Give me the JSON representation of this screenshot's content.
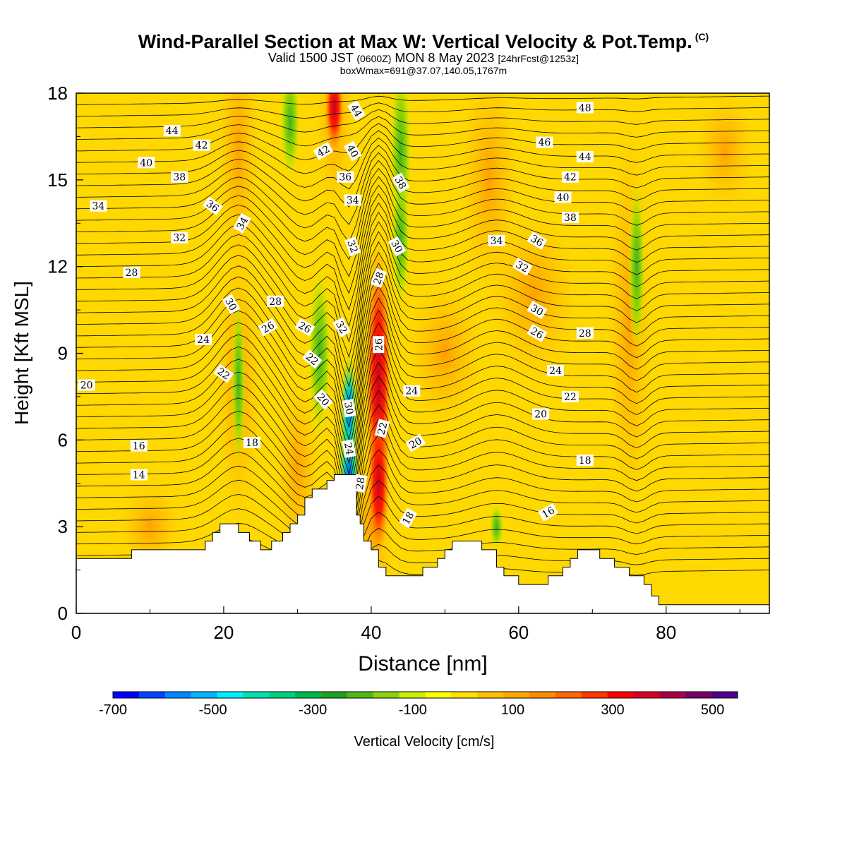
{
  "title": {
    "line1": "Wind-Parallel Section at Max W: Vertical Velocity & Pot.Temp.",
    "copyright": "(C)",
    "line2_a": "Valid 1500 JST",
    "line2_b": "(0600Z)",
    "line2_c": "MON 8 May 2023",
    "line2_d": "[24hrFcst@1253z]",
    "line3": "boxWmax=691@37.07,140.05,1767m"
  },
  "chart_data": {
    "type": "heatmap",
    "xlabel": "Distance [nm]",
    "ylabel": "Height [Kft MSL]",
    "xlim": [
      0,
      94
    ],
    "ylim": [
      0,
      18
    ],
    "x_ticks": [
      0,
      20,
      40,
      60,
      80
    ],
    "y_ticks": [
      0,
      3,
      6,
      9,
      12,
      15,
      18
    ],
    "colorbar": {
      "label": "Vertical Velocity [cm/s]",
      "range": [
        -700,
        550
      ],
      "tick_values": [
        -700,
        -500,
        -300,
        -100,
        100,
        300,
        500
      ],
      "tick_labels": [
        "-700",
        "-500",
        "-300",
        "-100",
        "100",
        "300",
        "500"
      ],
      "colors": [
        "#0000ff",
        "#0044ff",
        "#0088ff",
        "#00b4ff",
        "#00f0ff",
        "#00e0b0",
        "#00d080",
        "#00b850",
        "#22a020",
        "#50b818",
        "#90d010",
        "#ccf000",
        "#ffff00",
        "#ffe000",
        "#ffc000",
        "#ffa800",
        "#ff8c00",
        "#ff6800",
        "#ff3800",
        "#ff0000",
        "#d80028",
        "#a8004a",
        "#780068",
        "#50008c"
      ]
    },
    "terrain_kft": [
      [
        0,
        1.9
      ],
      [
        7.5,
        1.9
      ],
      [
        7.5,
        2.2
      ],
      [
        12.5,
        2.2
      ],
      [
        17.5,
        2.2
      ],
      [
        17.5,
        2.5
      ],
      [
        18.5,
        2.5
      ],
      [
        18.5,
        2.8
      ],
      [
        19.5,
        2.8
      ],
      [
        19.5,
        3.1
      ],
      [
        22,
        3.1
      ],
      [
        22,
        2.8
      ],
      [
        23.5,
        2.8
      ],
      [
        23.5,
        2.5
      ],
      [
        25,
        2.5
      ],
      [
        25,
        2.2
      ],
      [
        26.5,
        2.2
      ],
      [
        26.5,
        2.5
      ],
      [
        28,
        2.5
      ],
      [
        28,
        2.8
      ],
      [
        29,
        2.8
      ],
      [
        29,
        3.1
      ],
      [
        30,
        3.1
      ],
      [
        30,
        3.4
      ],
      [
        31,
        3.4
      ],
      [
        31,
        4.0
      ],
      [
        32,
        4.0
      ],
      [
        32,
        4.3
      ],
      [
        34,
        4.3
      ],
      [
        34,
        4.6
      ],
      [
        35,
        4.6
      ],
      [
        35,
        4.8
      ],
      [
        38,
        4.8
      ],
      [
        38,
        3.4
      ],
      [
        38.5,
        3.4
      ],
      [
        38.5,
        3.1
      ],
      [
        39,
        3.1
      ],
      [
        39,
        2.5
      ],
      [
        40,
        2.5
      ],
      [
        40,
        2.2
      ],
      [
        41,
        2.2
      ],
      [
        41,
        1.6
      ],
      [
        42,
        1.6
      ],
      [
        42,
        1.3
      ],
      [
        47,
        1.3
      ],
      [
        47,
        1.6
      ],
      [
        49,
        1.6
      ],
      [
        49,
        1.9
      ],
      [
        50,
        1.9
      ],
      [
        50,
        2.2
      ],
      [
        51,
        2.2
      ],
      [
        51,
        2.5
      ],
      [
        52,
        2.5
      ],
      [
        52,
        2.5
      ],
      [
        55,
        2.5
      ],
      [
        55,
        2.2
      ],
      [
        57,
        2.2
      ],
      [
        57,
        1.6
      ],
      [
        58,
        1.6
      ],
      [
        58,
        1.3
      ],
      [
        60,
        1.3
      ],
      [
        60,
        1.0
      ],
      [
        64,
        1.0
      ],
      [
        64,
        1.3
      ],
      [
        66,
        1.3
      ],
      [
        66,
        1.6
      ],
      [
        67,
        1.6
      ],
      [
        67,
        1.9
      ],
      [
        68,
        1.9
      ],
      [
        68,
        2.2
      ],
      [
        71,
        2.2
      ],
      [
        71,
        1.9
      ],
      [
        73,
        1.9
      ],
      [
        73,
        1.6
      ],
      [
        75,
        1.6
      ],
      [
        75,
        1.3
      ],
      [
        77,
        1.3
      ],
      [
        77,
        1.0
      ],
      [
        78,
        1.0
      ],
      [
        78,
        0.6
      ],
      [
        79,
        0.6
      ],
      [
        79,
        0.3
      ],
      [
        94,
        0.3
      ],
      [
        94,
        0
      ]
    ],
    "contour_labels": [
      {
        "text": "44",
        "x": 13,
        "y": 16.7,
        "rot": 0
      },
      {
        "text": "42",
        "x": 17,
        "y": 16.2,
        "rot": 0
      },
      {
        "text": "40",
        "x": 9.5,
        "y": 15.6,
        "rot": 0
      },
      {
        "text": "38",
        "x": 14,
        "y": 15.1,
        "rot": 0
      },
      {
        "text": "34",
        "x": 3,
        "y": 14.1,
        "rot": 0
      },
      {
        "text": "36",
        "x": 18.5,
        "y": 14.1,
        "rot": 35
      },
      {
        "text": "34",
        "x": 22.5,
        "y": 13.5,
        "rot": -60
      },
      {
        "text": "32",
        "x": 14,
        "y": 13.0,
        "rot": 0
      },
      {
        "text": "28",
        "x": 7.5,
        "y": 11.8,
        "rot": 0
      },
      {
        "text": "30",
        "x": 21,
        "y": 10.7,
        "rot": 60
      },
      {
        "text": "28",
        "x": 27,
        "y": 10.8,
        "rot": 0
      },
      {
        "text": "26",
        "x": 26,
        "y": 9.9,
        "rot": -30
      },
      {
        "text": "26",
        "x": 31,
        "y": 9.9,
        "rot": 30
      },
      {
        "text": "24",
        "x": 17055,
        "y": 9.4,
        "rot": 0
      },
      {
        "text": "22",
        "x": 20,
        "y": 8.3,
        "rot": 35
      },
      {
        "text": "20",
        "x": 1400,
        "y": 7.9,
        "rot": 0
      },
      {
        "text": "22",
        "x": 32000,
        "y": 8.8,
        "rot": 40
      },
      {
        "text": "20",
        "x": 33.5,
        "y": 7.4,
        "rot": 50
      },
      {
        "text": "18",
        "x": 24000,
        "y": 5.9,
        "rot": 0
      },
      {
        "text": "16",
        "x": 8.5,
        "y": 5.8,
        "rot": 0
      },
      {
        "text": "14",
        "x": 8.5,
        "y": 4.8,
        "rot": 0
      },
      {
        "text": "44",
        "x": 38000,
        "y": 17.4,
        "rot": 60
      },
      {
        "text": "42",
        "x": 33500,
        "y": 16.0,
        "rot": -30
      },
      {
        "text": "40",
        "x": 37.5,
        "y": 16.0,
        "rot": 60
      },
      {
        "text": "36",
        "x": 36.5,
        "y": 15.1,
        "rot": 0
      },
      {
        "text": "34",
        "x": 37.5,
        "y": 14.3,
        "rot": 0
      },
      {
        "text": "32",
        "x": 37.5,
        "y": 12.7,
        "rot": 70
      },
      {
        "text": "32",
        "x": 36,
        "y": 9.9,
        "rot": 60
      },
      {
        "text": "30",
        "x": 37,
        "y": 7.1,
        "rot": 80
      },
      {
        "text": "24",
        "x": 37,
        "y": 5.7,
        "rot": 80
      },
      {
        "text": "28",
        "x": 38.5,
        "y": 4.5,
        "rot": -80
      },
      {
        "text": "38",
        "x": 44000,
        "y": 14.9,
        "rot": 60
      },
      {
        "text": "30",
        "x": 43500,
        "y": 12.7,
        "rot": 60
      },
      {
        "text": "28",
        "x": 41,
        "y": 11.6,
        "rot": -70
      },
      {
        "text": "26",
        "x": 41,
        "y": 9.3,
        "rot": -90
      },
      {
        "text": "24",
        "x": 45.5,
        "y": 7.7,
        "rot": 0
      },
      {
        "text": "22",
        "x": 41.5,
        "y": 6.4,
        "rot": -75
      },
      {
        "text": "20",
        "x": 46,
        "y": 5.9,
        "rot": -30
      },
      {
        "text": "18",
        "x": 45,
        "y": 3.3,
        "rot": -60
      },
      {
        "text": "34",
        "x": 57000,
        "y": 12.9,
        "rot": 0
      },
      {
        "text": "36",
        "x": 62.5,
        "y": 12.9,
        "rot": 30
      },
      {
        "text": "32",
        "x": 60.5,
        "y": 12.0,
        "rot": 30
      },
      {
        "text": "30",
        "x": 62.5,
        "y": 10.5,
        "rot": 30
      },
      {
        "text": "26",
        "x": 62.5,
        "y": 9.7,
        "rot": 30
      },
      {
        "text": "28",
        "x": 69000,
        "y": 9.7,
        "rot": 0
      },
      {
        "text": "24",
        "x": 65,
        "y": 8.4,
        "rot": 0
      },
      {
        "text": "22",
        "x": 67,
        "y": 7.5,
        "rot": 0
      },
      {
        "text": "20",
        "x": 63,
        "y": 6.9,
        "rot": 0
      },
      {
        "text": "18",
        "x": 69000,
        "y": 5.3,
        "rot": 0
      },
      {
        "text": "16",
        "x": 64,
        "y": 3.5,
        "rot": -30
      },
      {
        "text": "48",
        "x": 69000,
        "y": 17.5,
        "rot": 0
      },
      {
        "text": "46",
        "x": 63500,
        "y": 16.3,
        "rot": 0
      },
      {
        "text": "44",
        "x": 69000,
        "y": 15.8,
        "rot": 0
      },
      {
        "text": "42",
        "x": 67000,
        "y": 15.1,
        "rot": 0
      },
      {
        "text": "40",
        "x": 66,
        "y": 14.4,
        "rot": 0
      },
      {
        "text": "38",
        "x": 67000,
        "y": 13.7,
        "rot": 0
      }
    ]
  }
}
